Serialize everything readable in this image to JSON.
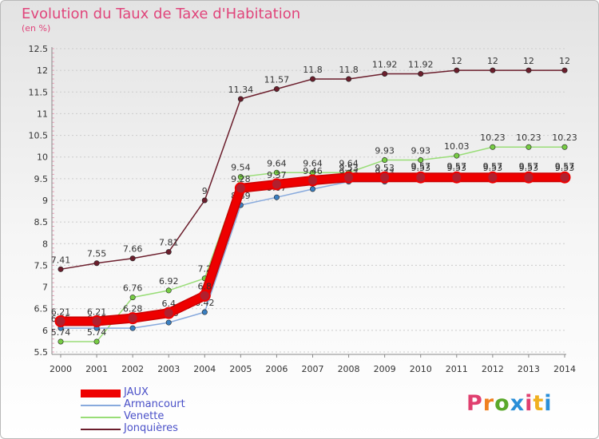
{
  "title": "Evolution du Taux de Taxe d'Habitation",
  "subtitle": "(en %)",
  "logo_text": "Proxiti",
  "colors": {
    "title": "#e0457b",
    "legend_text": "#4a50c8",
    "grid": "#cccccc"
  },
  "chart_data": {
    "type": "line",
    "x": [
      "2000",
      "2001",
      "2002",
      "2003",
      "2004",
      "2005",
      "2006",
      "2007",
      "2008",
      "2009",
      "2010",
      "2011",
      "2012",
      "2013",
      "2014"
    ],
    "ylim": [
      5.5,
      12.5
    ],
    "yticks": [
      "5.5",
      "6",
      "6.5",
      "7",
      "7.5",
      "8",
      "8.5",
      "9",
      "9.5",
      "10",
      "10.5",
      "11",
      "11.5",
      "12",
      "12.5"
    ],
    "grid": "horizontal dashed",
    "legend_position": "bottom-left",
    "series": [
      {
        "name": "Jonquières",
        "color": "#6b1e2c",
        "marker": "#6b1e2c",
        "values": [
          7.41,
          7.55,
          7.66,
          7.81,
          9,
          11.34,
          11.57,
          11.8,
          11.8,
          11.92,
          11.92,
          12,
          12,
          12,
          12
        ],
        "labels": [
          "7.41",
          "7.55",
          "7.66",
          "7.81",
          "9",
          "11.34",
          "11.57",
          "11.8",
          "11.8",
          "11.92",
          "11.92",
          "12",
          "12",
          "12",
          "12"
        ]
      },
      {
        "name": "Venette",
        "color": "#99dd77",
        "marker": "#77cc44",
        "values": [
          5.74,
          5.74,
          6.76,
          6.92,
          7.2,
          9.54,
          9.64,
          9.64,
          9.64,
          9.93,
          9.93,
          10.03,
          10.23,
          10.23,
          10.23
        ],
        "labels": [
          "5.74",
          "5.74",
          "6.76",
          "6.92",
          "7.2",
          "9.54",
          "9.64",
          "9.64",
          "9.64",
          "9.93",
          "9.93",
          "10.03",
          "10.23",
          "10.23",
          "10.23"
        ]
      },
      {
        "name": "Armancourt",
        "color": "#88aadd",
        "marker": "#3a7fc1",
        "values": [
          6.05,
          6.05,
          6.05,
          6.18,
          6.42,
          8.89,
          9.07,
          9.26,
          9.43,
          9.43,
          9.57,
          9.57,
          9.57,
          9.57,
          9.57
        ],
        "labels": [
          "6.05",
          "6.05",
          "6.05",
          "6.18",
          "6.42",
          "8.89",
          "9.07",
          "9.26",
          "9.43",
          "9.43",
          "9.57",
          "9.57",
          "9.57",
          "9.57",
          "9.57"
        ]
      },
      {
        "name": "JAUX",
        "color": "#ee0000",
        "marker": "#c0202e",
        "values": [
          6.21,
          6.21,
          6.28,
          6.4,
          6.8,
          9.28,
          9.37,
          9.46,
          9.53,
          9.53,
          9.53,
          9.53,
          9.53,
          9.53,
          9.53
        ],
        "labels": [
          "6.21",
          "6.21",
          "6.28",
          "6.4",
          "6.8",
          "9.28",
          "9.37",
          "9.46",
          "9.53",
          "9.53",
          "9.53",
          "9.53",
          "9.53",
          "9.53",
          "9.53"
        ]
      }
    ]
  },
  "legend": [
    {
      "label": "JAUX",
      "color": "#ee0000",
      "thick": true
    },
    {
      "label": "Armancourt",
      "color": "#88aadd",
      "thick": false
    },
    {
      "label": "Venette",
      "color": "#99dd77",
      "thick": false
    },
    {
      "label": "Jonquières",
      "color": "#6b1e2c",
      "thick": false
    }
  ]
}
